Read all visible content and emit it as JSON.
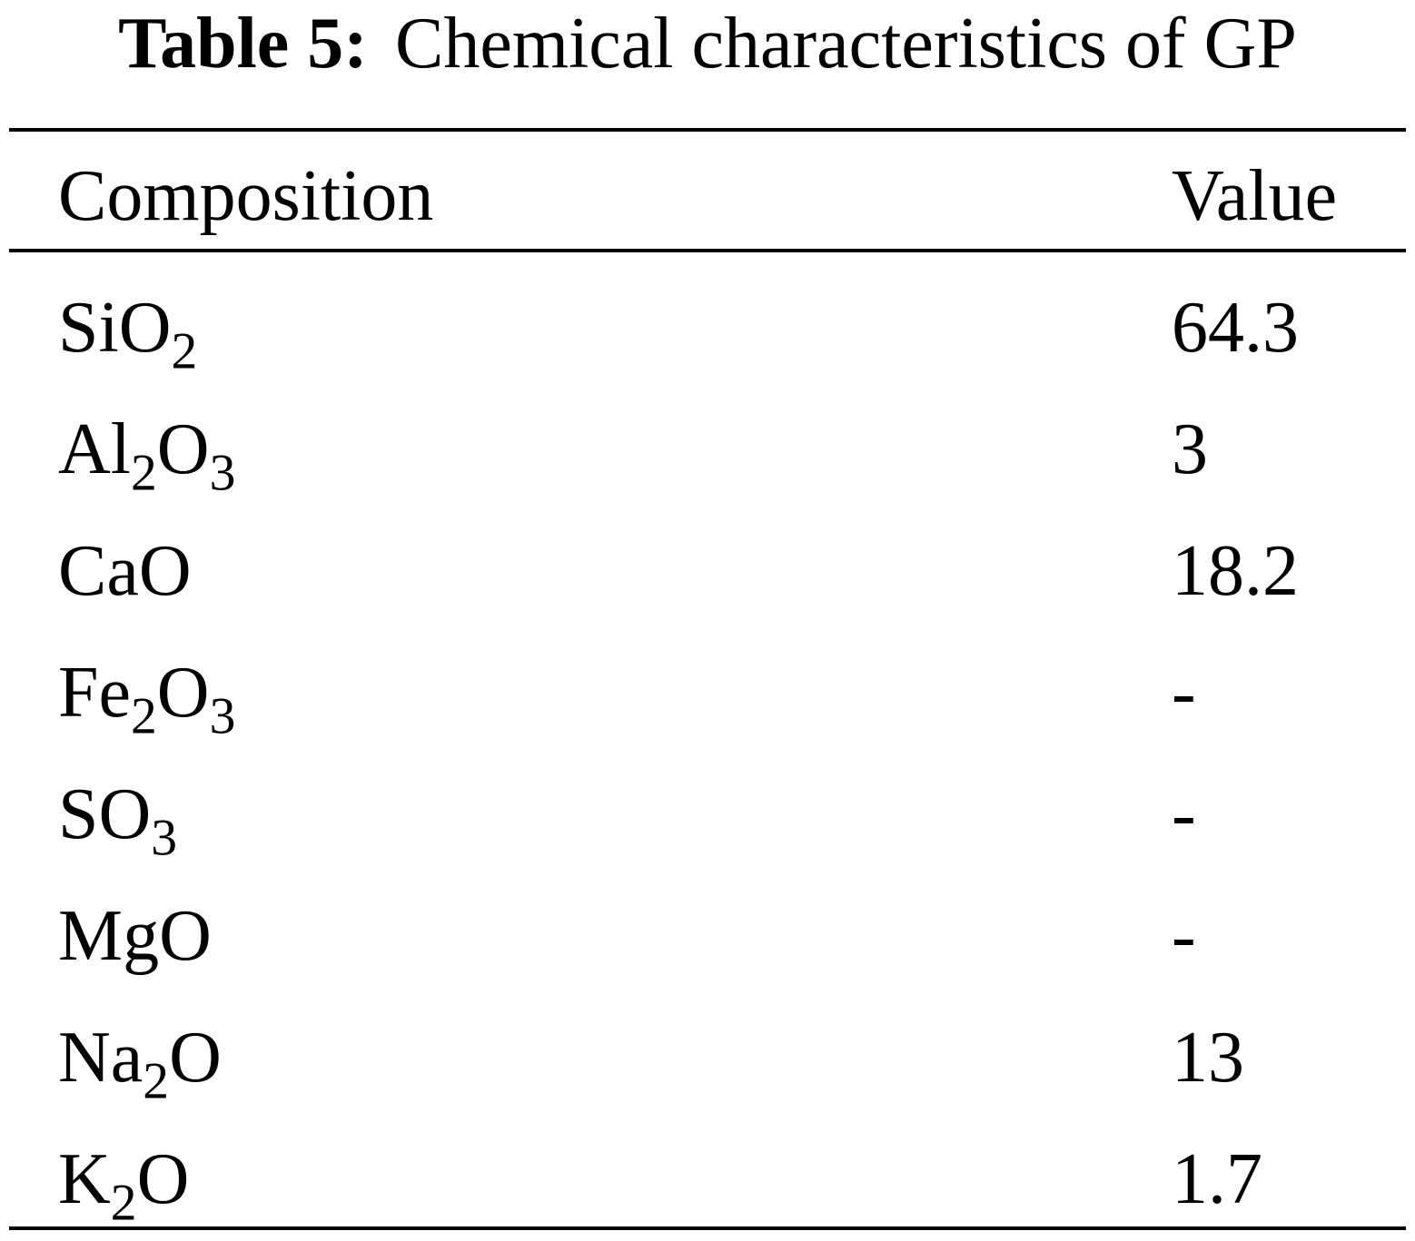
{
  "caption": {
    "label": "Table 5:",
    "text": "Chemical characteristics of GP"
  },
  "table": {
    "headers": {
      "composition": "Composition",
      "value": "Value"
    },
    "rows": [
      {
        "formula": [
          {
            "t": "SiO"
          },
          {
            "s": "2"
          }
        ],
        "value": "64.3"
      },
      {
        "formula": [
          {
            "t": "Al"
          },
          {
            "s": "2"
          },
          {
            "t": "O"
          },
          {
            "s": "3"
          }
        ],
        "value": "3"
      },
      {
        "formula": [
          {
            "t": "CaO"
          }
        ],
        "value": "18.2"
      },
      {
        "formula": [
          {
            "t": "Fe"
          },
          {
            "s": "2"
          },
          {
            "t": "O"
          },
          {
            "s": "3"
          }
        ],
        "value": "-"
      },
      {
        "formula": [
          {
            "t": "SO"
          },
          {
            "s": "3"
          }
        ],
        "value": "-"
      },
      {
        "formula": [
          {
            "t": "MgO"
          }
        ],
        "value": "-"
      },
      {
        "formula": [
          {
            "t": "Na"
          },
          {
            "s": "2"
          },
          {
            "t": "O"
          }
        ],
        "value": "13"
      },
      {
        "formula": [
          {
            "t": "K"
          },
          {
            "s": "2"
          },
          {
            "t": "O"
          }
        ],
        "value": "1.7"
      }
    ]
  }
}
